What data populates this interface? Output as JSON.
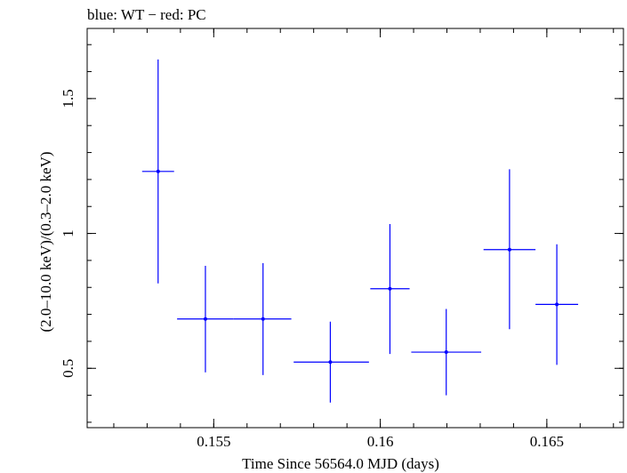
{
  "chart_data": {
    "type": "scatter",
    "title": "blue: WT − red: PC",
    "xlabel": "Time Since 56564.0 MJD (days)",
    "ylabel": "(2.0–10.0 keV)/(0.3–2.0 keV)",
    "xlim": [
      0.1512,
      0.1673
    ],
    "ylim": [
      0.28,
      1.76
    ],
    "x_major_ticks": [
      0.155,
      0.16,
      0.165
    ],
    "x_major_tick_labels": [
      "0.155",
      "0.16",
      "0.165"
    ],
    "x_minor_step": 0.001,
    "y_major_ticks": [
      0.5,
      1.0,
      1.5
    ],
    "y_major_tick_labels": [
      "0.5",
      "1",
      "1.5"
    ],
    "y_minor_step": 0.1,
    "grid": false,
    "series": [
      {
        "name": "WT",
        "color": "#0000ff",
        "points": [
          {
            "x": 0.15333,
            "xlo": 0.15285,
            "xhi": 0.15381,
            "y": 1.23,
            "ylo": 0.815,
            "yhi": 1.645
          },
          {
            "x": 0.15475,
            "xlo": 0.1539,
            "xhi": 0.1556,
            "y": 0.683,
            "ylo": 0.485,
            "yhi": 0.88
          },
          {
            "x": 0.15648,
            "xlo": 0.1556,
            "xhi": 0.15733,
            "y": 0.683,
            "ylo": 0.475,
            "yhi": 0.89
          },
          {
            "x": 0.1585,
            "xlo": 0.1574,
            "xhi": 0.15966,
            "y": 0.523,
            "ylo": 0.373,
            "yhi": 0.673
          },
          {
            "x": 0.16029,
            "xlo": 0.1597,
            "xhi": 0.16088,
            "y": 0.795,
            "ylo": 0.553,
            "yhi": 1.035
          },
          {
            "x": 0.16198,
            "xlo": 0.16093,
            "xhi": 0.16303,
            "y": 0.56,
            "ylo": 0.4,
            "yhi": 0.72
          },
          {
            "x": 0.16388,
            "xlo": 0.1631,
            "xhi": 0.16466,
            "y": 0.94,
            "ylo": 0.645,
            "yhi": 1.238
          },
          {
            "x": 0.1653,
            "xlo": 0.16466,
            "xhi": 0.16594,
            "y": 0.737,
            "ylo": 0.513,
            "yhi": 0.96
          }
        ]
      }
    ]
  }
}
